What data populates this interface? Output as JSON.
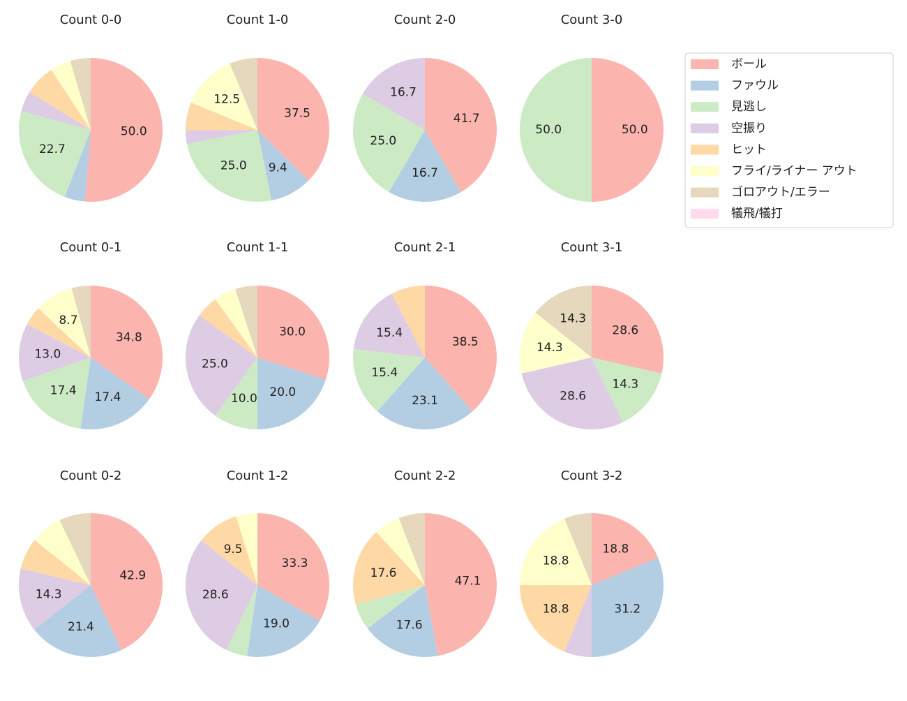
{
  "legend": {
    "labels": [
      "ボール",
      "ファウル",
      "見逃し",
      "空振り",
      "ヒット",
      "フライ/ライナー アウト",
      "ゴロアウト/エラー",
      "犠飛/犠打"
    ],
    "colors": [
      "#fbb4ae",
      "#b3cde3",
      "#ccebc5",
      "#decbe4",
      "#fed9a6",
      "#ffffcc",
      "#e5d8bd",
      "#fddaec"
    ]
  },
  "chart_data": [
    {
      "type": "pie",
      "title": "Count 0-0",
      "values": [
        50.0,
        4.5,
        22.7,
        4.5,
        6.8,
        4.5,
        4.5,
        0
      ],
      "value_labels": [
        "50.0",
        null,
        "22.7",
        null,
        null,
        null,
        null,
        null
      ]
    },
    {
      "type": "pie",
      "title": "Count 1-0",
      "values": [
        37.5,
        9.4,
        25.0,
        3.1,
        6.3,
        12.5,
        6.3,
        0
      ],
      "value_labels": [
        "37.5",
        "9.4",
        "25.0",
        null,
        null,
        "12.5",
        null,
        null
      ]
    },
    {
      "type": "pie",
      "title": "Count 2-0",
      "values": [
        41.7,
        16.7,
        25.0,
        16.7,
        0,
        0,
        0,
        0
      ],
      "value_labels": [
        "41.7",
        "16.7",
        "25.0",
        "16.7",
        null,
        null,
        null,
        null
      ]
    },
    {
      "type": "pie",
      "title": "Count 3-0",
      "values": [
        50.0,
        0,
        50.0,
        0,
        0,
        0,
        0,
        0
      ],
      "value_labels": [
        "50.0",
        null,
        "50.0",
        null,
        null,
        null,
        null,
        null
      ]
    },
    {
      "type": "pie",
      "title": "Count 0-1",
      "values": [
        34.8,
        17.4,
        17.4,
        13.0,
        4.3,
        8.7,
        4.3,
        0
      ],
      "value_labels": [
        "34.8",
        "17.4",
        "17.4",
        "13.0",
        null,
        "8.7",
        null,
        null
      ]
    },
    {
      "type": "pie",
      "title": "Count 1-1",
      "values": [
        30.0,
        20.0,
        10.0,
        25.0,
        5.0,
        5.0,
        5.0,
        0
      ],
      "value_labels": [
        "30.0",
        "20.0",
        "10.0",
        "25.0",
        null,
        null,
        null,
        null
      ]
    },
    {
      "type": "pie",
      "title": "Count 2-1",
      "values": [
        38.5,
        23.1,
        15.4,
        15.4,
        7.7,
        0,
        0,
        0
      ],
      "value_labels": [
        "38.5",
        "23.1",
        "15.4",
        "15.4",
        null,
        null,
        null,
        null
      ]
    },
    {
      "type": "pie",
      "title": "Count 3-1",
      "values": [
        28.6,
        0,
        14.3,
        28.6,
        0,
        14.3,
        14.3,
        0
      ],
      "value_labels": [
        "28.6",
        null,
        "14.3",
        "28.6",
        null,
        "14.3",
        "14.3",
        null
      ]
    },
    {
      "type": "pie",
      "title": "Count 0-2",
      "values": [
        42.9,
        21.4,
        0,
        14.3,
        7.1,
        7.1,
        7.1,
        0
      ],
      "value_labels": [
        "42.9",
        "21.4",
        null,
        "14.3",
        null,
        null,
        null,
        null
      ]
    },
    {
      "type": "pie",
      "title": "Count 1-2",
      "values": [
        33.3,
        19.0,
        4.8,
        28.6,
        9.5,
        4.8,
        0,
        0
      ],
      "value_labels": [
        "33.3",
        "19.0",
        null,
        "28.6",
        "9.5",
        null,
        null,
        null
      ]
    },
    {
      "type": "pie",
      "title": "Count 2-2",
      "values": [
        47.1,
        17.6,
        5.9,
        0,
        17.6,
        5.9,
        5.9,
        0
      ],
      "value_labels": [
        "47.1",
        "17.6",
        null,
        null,
        "17.6",
        null,
        null,
        null
      ]
    },
    {
      "type": "pie",
      "title": "Count 3-2",
      "values": [
        18.8,
        31.2,
        0,
        6.2,
        18.8,
        18.8,
        6.2,
        0
      ],
      "value_labels": [
        "18.8",
        "31.2",
        null,
        null,
        "18.8",
        "18.8",
        null,
        null
      ]
    }
  ]
}
